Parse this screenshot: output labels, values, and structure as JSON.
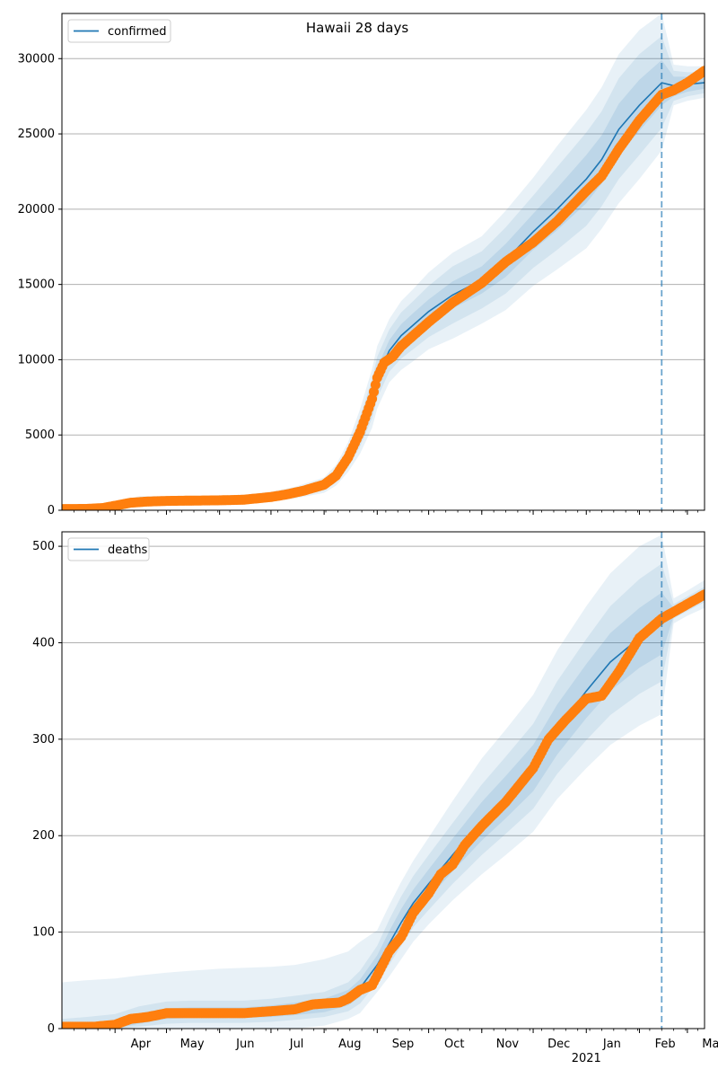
{
  "figure": {
    "title": "Hawaii 28 days"
  },
  "chart_data": [
    {
      "type": "line",
      "title": "Hawaii 28 days",
      "legend": {
        "placement": "top-left",
        "entries": [
          "confirmed"
        ]
      },
      "series": [
        {
          "name": "confirmed",
          "kind": "model",
          "color": "#1f77b4",
          "x": [
            "2020-03-01",
            "2020-03-15",
            "2020-04-01",
            "2020-04-15",
            "2020-05-01",
            "2020-05-15",
            "2020-06-01",
            "2020-06-15",
            "2020-07-01",
            "2020-07-15",
            "2020-08-01",
            "2020-08-08",
            "2020-08-15",
            "2020-08-22",
            "2020-08-29",
            "2020-09-01",
            "2020-09-08",
            "2020-09-15",
            "2020-09-22",
            "2020-10-01",
            "2020-10-15",
            "2020-11-01",
            "2020-11-15",
            "2020-12-01",
            "2020-12-15",
            "2021-01-01",
            "2021-01-10",
            "2021-01-20",
            "2021-02-01",
            "2021-02-14",
            "2021-02-21",
            "2021-03-01",
            "2021-03-11"
          ],
          "y": [
            80,
            90,
            250,
            550,
            620,
            640,
            660,
            700,
            870,
            1150,
            1650,
            2300,
            3500,
            5200,
            7400,
            8800,
            10600,
            11600,
            12300,
            13200,
            14300,
            15300,
            16600,
            18500,
            20000,
            22000,
            23300,
            25300,
            26900,
            28400,
            28200,
            28300,
            28400
          ],
          "band_inner": {
            "lower": [
              30,
              40,
              150,
              430,
              520,
              540,
              560,
              600,
              760,
              1020,
              1480,
              2080,
              3180,
              4720,
              6760,
              8120,
              9900,
              10840,
              11500,
              12400,
              13400,
              14400,
              15500,
              17300,
              18600,
              20400,
              21700,
              23600,
              25200,
              26900,
              27500,
              27800,
              28000
            ],
            "upper": [
              130,
              140,
              350,
              670,
              720,
              740,
              760,
              800,
              980,
              1280,
              1820,
              2520,
              3820,
              5680,
              8040,
              9480,
              11300,
              12360,
              13100,
              14000,
              15200,
              16200,
              17700,
              19700,
              21400,
              23600,
              24900,
              27000,
              28600,
              29900,
              28800,
              28800,
              28800
            ]
          },
          "band_mid": {
            "lower": [
              0,
              0,
              80,
              330,
              430,
              450,
              470,
              510,
              660,
              900,
              1320,
              1860,
              2860,
              4240,
              6120,
              7440,
              9200,
              10080,
              10700,
              11500,
              12400,
              13400,
              14400,
              16100,
              17300,
              18900,
              20200,
              22000,
              23600,
              25400,
              27200,
              27500,
              27700
            ],
            "upper": [
              180,
              200,
              450,
              800,
              830,
              850,
              870,
              910,
              1100,
              1420,
              2000,
              2760,
              4160,
              6200,
              8700,
              10200,
              12000,
              13140,
              13900,
              14900,
              16200,
              17200,
              18800,
              20900,
              22800,
              25100,
              26500,
              28700,
              30300,
              31500,
              29200,
              29100,
              29100
            ]
          },
          "band_outer": {
            "lower": [
              0,
              0,
              20,
              230,
              330,
              350,
              370,
              410,
              560,
              780,
              1160,
              1640,
              2540,
              3760,
              5480,
              6760,
              8500,
              9320,
              9900,
              10700,
              11400,
              12400,
              13300,
              14900,
              16000,
              17400,
              18700,
              20400,
              22000,
              23900,
              26900,
              27200,
              27400
            ],
            "upper": [
              240,
              260,
              560,
              930,
              950,
              970,
              990,
              1030,
              1230,
              1560,
              2180,
              3020,
              4520,
              6720,
              9400,
              10900,
              12700,
              13900,
              14700,
              15800,
              17100,
              18200,
              19900,
              22100,
              24200,
              26600,
              28100,
              30300,
              31900,
              33000,
              29600,
              29500,
              29500
            ]
          }
        },
        {
          "name": "confirmed observed",
          "kind": "observed",
          "color": "#ff7f0e",
          "x": [
            "2020-03-01",
            "2020-03-15",
            "2020-03-25",
            "2020-04-01",
            "2020-04-10",
            "2020-04-20",
            "2020-05-01",
            "2020-05-15",
            "2020-06-01",
            "2020-06-15",
            "2020-07-01",
            "2020-07-10",
            "2020-07-20",
            "2020-08-01",
            "2020-08-08",
            "2020-08-15",
            "2020-08-22",
            "2020-08-29",
            "2020-09-01",
            "2020-09-05",
            "2020-09-10",
            "2020-09-15",
            "2020-09-22",
            "2020-10-01",
            "2020-10-15",
            "2020-11-01",
            "2020-11-15",
            "2020-12-01",
            "2020-12-15",
            "2021-01-01",
            "2021-01-10",
            "2021-01-20",
            "2021-02-01",
            "2021-02-14",
            "2021-02-21",
            "2021-03-01",
            "2021-03-11"
          ],
          "y": [
            80,
            90,
            150,
            300,
            500,
            580,
            620,
            640,
            660,
            700,
            880,
            1050,
            1300,
            1700,
            2300,
            3500,
            5200,
            7400,
            8800,
            9800,
            10200,
            10900,
            11600,
            12500,
            13800,
            15100,
            16500,
            17800,
            19200,
            21200,
            22200,
            24000,
            25900,
            27600,
            27900,
            28400,
            29200
          ]
        }
      ],
      "xlabel": "",
      "ylabel": "",
      "xlim": [
        "2020-03-01",
        "2021-03-11"
      ],
      "ylim": [
        0,
        33000
      ],
      "yticks": [
        0,
        5000,
        10000,
        15000,
        20000,
        25000,
        30000
      ],
      "grid": "y",
      "vline": {
        "x": "2021-02-14",
        "color": "#1f77b4",
        "style": "dashed"
      }
    },
    {
      "type": "line",
      "title": "",
      "legend": {
        "placement": "top-left",
        "entries": [
          "deaths"
        ]
      },
      "series": [
        {
          "name": "deaths",
          "kind": "model",
          "color": "#1f77b4",
          "x": [
            "2020-03-01",
            "2020-03-15",
            "2020-04-01",
            "2020-04-15",
            "2020-05-01",
            "2020-05-15",
            "2020-06-01",
            "2020-06-15",
            "2020-07-01",
            "2020-07-15",
            "2020-08-01",
            "2020-08-15",
            "2020-08-22",
            "2020-09-01",
            "2020-09-08",
            "2020-09-15",
            "2020-09-22",
            "2020-10-01",
            "2020-10-15",
            "2020-11-01",
            "2020-11-15",
            "2020-12-01",
            "2020-12-15",
            "2021-01-01",
            "2021-01-15",
            "2021-02-01",
            "2021-02-14",
            "2021-02-21",
            "2021-03-01",
            "2021-03-11"
          ],
          "y": [
            0,
            1,
            4,
            10,
            15,
            16,
            16,
            16,
            18,
            20,
            24,
            32,
            42,
            66,
            88,
            110,
            130,
            150,
            180,
            215,
            240,
            270,
            310,
            350,
            380,
            405,
            420,
            432,
            440,
            450
          ],
          "band_inner": {
            "lower": [
              0,
              0,
              0,
              5,
              10,
              11,
              11,
              11,
              12,
              14,
              17,
              24,
              33,
              56,
              75,
              96,
              116,
              135,
              163,
              195,
              218,
              246,
              284,
              322,
              350,
              374,
              388,
              428,
              436,
              446
            ],
            "upper": [
              5,
              6,
              9,
              16,
              21,
              22,
              22,
              22,
              24,
              27,
              31,
              40,
              51,
              76,
              101,
              124,
              144,
              165,
              197,
              235,
              262,
              294,
              336,
              378,
              410,
              436,
              452,
              436,
              444,
              454
            ]
          },
          "band_mid": {
            "lower": [
              0,
              0,
              0,
              2,
              5,
              6,
              6,
              6,
              7,
              9,
              12,
              18,
              26,
              48,
              66,
              86,
              105,
              123,
              150,
              180,
              202,
              228,
              264,
              299,
              325,
              347,
              360,
              425,
              433,
              442
            ],
            "upper": [
              10,
              12,
              15,
              23,
              28,
              29,
              29,
              29,
              31,
              34,
              38,
              48,
              60,
              86,
              113,
              137,
              158,
              180,
              213,
              253,
              282,
              316,
              360,
              404,
              438,
              466,
              482,
              440,
              448,
              458
            ]
          },
          "band_outer": {
            "lower": [
              0,
              0,
              0,
              0,
              0,
              0,
              0,
              0,
              0,
              0,
              3,
              10,
              16,
              38,
              54,
              72,
              90,
              108,
              133,
              160,
              180,
              204,
              238,
              270,
              294,
              314,
              326,
              420,
              428,
              436
            ],
            "upper": [
              48,
              50,
              52,
              55,
              58,
              60,
              62,
              63,
              64,
              66,
              72,
              80,
              90,
              102,
              128,
              152,
              174,
              198,
              236,
              280,
              310,
              346,
              392,
              438,
              472,
              500,
              512,
              446,
              454,
              465
            ]
          }
        },
        {
          "name": "deaths observed",
          "kind": "observed",
          "color": "#ff7f0e",
          "x": [
            "2020-03-01",
            "2020-03-20",
            "2020-04-01",
            "2020-04-10",
            "2020-04-20",
            "2020-05-01",
            "2020-05-15",
            "2020-06-01",
            "2020-06-15",
            "2020-07-01",
            "2020-07-15",
            "2020-07-25",
            "2020-08-01",
            "2020-08-10",
            "2020-08-15",
            "2020-08-22",
            "2020-08-29",
            "2020-09-01",
            "2020-09-08",
            "2020-09-15",
            "2020-09-22",
            "2020-10-01",
            "2020-10-08",
            "2020-10-15",
            "2020-10-22",
            "2020-11-01",
            "2020-11-15",
            "2020-12-01",
            "2020-12-10",
            "2020-12-20",
            "2021-01-01",
            "2021-01-10",
            "2021-01-20",
            "2021-02-01",
            "2021-02-14",
            "2021-02-21",
            "2021-03-01",
            "2021-03-11"
          ],
          "y": [
            2,
            2,
            4,
            10,
            12,
            16,
            16,
            16,
            16,
            18,
            20,
            25,
            26,
            27,
            31,
            40,
            45,
            55,
            80,
            95,
            120,
            140,
            160,
            170,
            190,
            210,
            235,
            270,
            300,
            320,
            342,
            345,
            370,
            405,
            425,
            432,
            440,
            450
          ]
        }
      ],
      "xlabel": "",
      "ylabel": "",
      "xlim": [
        "2020-03-01",
        "2021-03-11"
      ],
      "ylim": [
        0,
        515
      ],
      "yticks": [
        0,
        100,
        200,
        300,
        400,
        500
      ],
      "xticks": [
        "2020-04-01",
        "2020-05-01",
        "2020-06-01",
        "2020-07-01",
        "2020-08-01",
        "2020-09-01",
        "2020-10-01",
        "2020-11-01",
        "2020-12-01",
        "2021-01-01",
        "2021-02-01",
        "2021-03-01"
      ],
      "xticklabels": [
        "Apr",
        "May",
        "Jun",
        "Jul",
        "Aug",
        "Sep",
        "Oct",
        "Nov",
        "Dec",
        "Jan",
        "Feb",
        "Mar"
      ],
      "year_label": {
        "at": "2021-01-01",
        "text": "2021"
      },
      "grid": "y",
      "vline": {
        "x": "2021-02-14",
        "color": "#1f77b4",
        "style": "dashed"
      }
    }
  ]
}
